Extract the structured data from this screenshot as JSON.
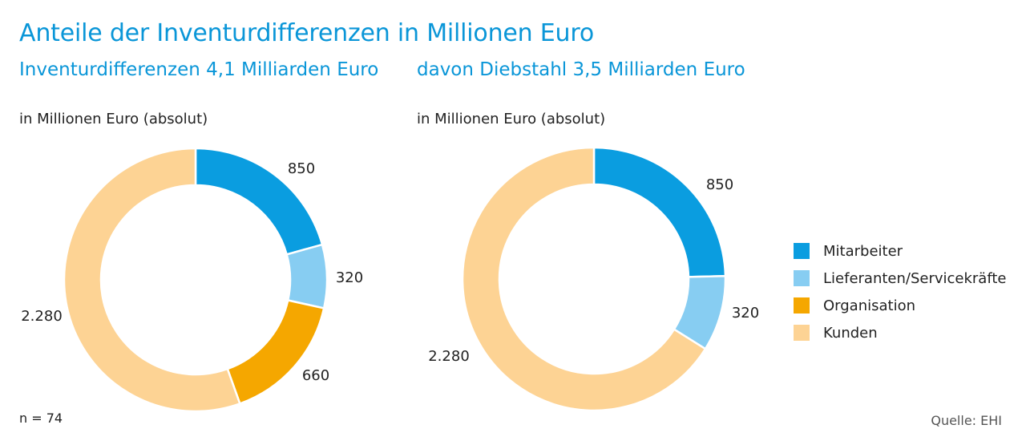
{
  "title": "Anteile der Inventurdifferenzen in Millionen Euro",
  "colors": {
    "Mitarbeiter": "#0a9de0",
    "Lieferanten/Servicekräfte": "#87cdf2",
    "Organisation": "#f5a700",
    "Kunden": "#fdd394"
  },
  "legend": [
    "Mitarbeiter",
    "Lieferanten/Servicekräfte",
    "Organisation",
    "Kunden"
  ],
  "note": "n = 74",
  "source": "Quelle: EHI",
  "chart_data": [
    {
      "type": "pie",
      "title": "Inventurdifferenzen 4,1 Milliarden Euro",
      "unit_label": "in Millionen Euro (absolut)",
      "categories": [
        "Mitarbeiter",
        "Lieferanten/Servicekräfte",
        "Organisation",
        "Kunden"
      ],
      "values": [
        850,
        320,
        660,
        2280
      ],
      "value_labels": [
        "850",
        "320",
        "660",
        "2.280"
      ]
    },
    {
      "type": "pie",
      "title": "davon Diebstahl 3,5 Milliarden Euro",
      "unit_label": "in Millionen Euro (absolut)",
      "categories": [
        "Mitarbeiter",
        "Lieferanten/Servicekräfte",
        "Kunden"
      ],
      "values": [
        850,
        320,
        2280
      ],
      "value_labels": [
        "850",
        "320",
        "2.280"
      ]
    }
  ]
}
